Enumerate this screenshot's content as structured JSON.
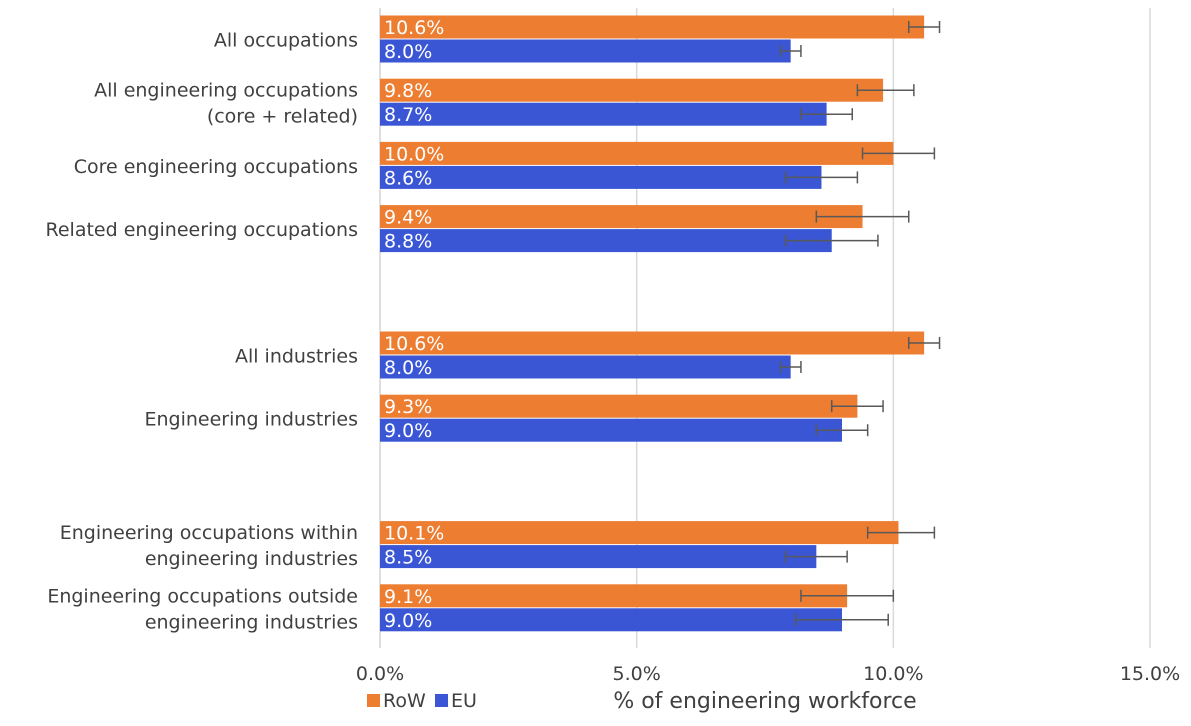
{
  "chart_data": {
    "type": "bar",
    "orientation": "horizontal",
    "xlabel": "% of engineering workforce",
    "xlim": [
      0,
      15
    ],
    "x_ticks": [
      "0.0%",
      "5.0%",
      "10.0%",
      "15.0%"
    ],
    "grid": "vertical",
    "legend": {
      "placement": "bottom-left",
      "entries": [
        "RoW",
        "EU"
      ]
    },
    "categories": [
      [
        "All occupations"
      ],
      [
        "All engineering occupations",
        "(core + related)"
      ],
      [
        "Core engineering occupations"
      ],
      [
        "Related engineering occupations"
      ],
      [
        "All industries"
      ],
      [
        "Engineering industries"
      ],
      [
        "Engineering occupations within",
        "engineering industries"
      ],
      [
        "Engineering occupations outside",
        "engineering industries"
      ]
    ],
    "group_slots": [
      0,
      1,
      2,
      3,
      5,
      6,
      8,
      9
    ],
    "series": [
      {
        "name": "RoW",
        "color": "#ED7D31",
        "values": [
          10.6,
          9.8,
          10.0,
          9.4,
          10.6,
          9.3,
          10.1,
          9.1
        ],
        "labels": [
          "10.6%",
          "9.8%",
          "10.0%",
          "9.4%",
          "10.6%",
          "9.3%",
          "10.1%",
          "9.1%"
        ],
        "error_low": [
          10.3,
          9.3,
          9.4,
          8.5,
          10.3,
          8.8,
          9.5,
          8.2
        ],
        "error_high": [
          10.9,
          10.4,
          10.8,
          10.3,
          10.9,
          9.8,
          10.8,
          10.0
        ]
      },
      {
        "name": "EU",
        "color": "#3A56D4",
        "values": [
          8.0,
          8.7,
          8.6,
          8.8,
          8.0,
          9.0,
          8.5,
          9.0
        ],
        "labels": [
          "8.0%",
          "8.7%",
          "8.6%",
          "8.8%",
          "8.0%",
          "9.0%",
          "8.5%",
          "9.0%"
        ],
        "error_low": [
          7.8,
          8.2,
          7.9,
          7.9,
          7.8,
          8.5,
          7.9,
          8.1
        ],
        "error_high": [
          8.2,
          9.2,
          9.3,
          9.7,
          8.2,
          9.5,
          9.1,
          9.9
        ]
      }
    ]
  }
}
